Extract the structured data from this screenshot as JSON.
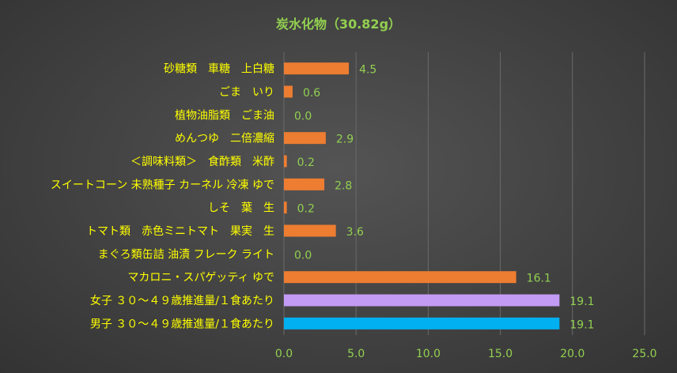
{
  "chart_data": {
    "type": "bar",
    "orientation": "horizontal",
    "title": "炭水化物（30.82g）",
    "categories": [
      "砂糖類　車糖　上白糖",
      "ごま　いり",
      "植物油脂類　ごま油",
      "めんつゆ　二倍濃縮",
      "＜調味料類＞　食酢類　米酢",
      "スイートコーン 未熟種子 カーネル 冷凍 ゆで",
      "しそ　葉　生",
      "トマト類　赤色ミニトマト　果実　生",
      "まぐろ類缶詰 油漬 フレーク ライト",
      "マカロニ・スパゲッティ ゆで",
      "女子 ３０～４９歳推進量/１食あたり",
      "男子 ３０～４９歳推進量/１食あたり"
    ],
    "values": [
      4.5,
      0.6,
      0.0,
      2.9,
      0.2,
      2.8,
      0.2,
      3.6,
      0.0,
      16.1,
      19.1,
      19.1
    ],
    "data_labels": [
      "4.5",
      "0.6",
      "0.0",
      "2.9",
      "0.2",
      "2.8",
      "0.2",
      "3.6",
      "0.0",
      "16.1",
      "19.1",
      "19.1"
    ],
    "bar_colors": [
      "#ED7D31",
      "#ED7D31",
      "#ED7D31",
      "#ED7D31",
      "#ED7D31",
      "#ED7D31",
      "#ED7D31",
      "#ED7D31",
      "#ED7D31",
      "#ED7D31",
      "#C39BF5",
      "#00B0F0"
    ],
    "x_ticks": [
      "0.0",
      "5.0",
      "10.0",
      "15.0",
      "20.0",
      "25.0"
    ],
    "xlim": [
      0,
      25
    ],
    "grid": "vertical",
    "colors": {
      "title": "#92D050",
      "category_label": "#FFFF00",
      "data_label": "#92D050",
      "tick_label": "#92D050",
      "gridline": "#6A6A6A"
    }
  }
}
